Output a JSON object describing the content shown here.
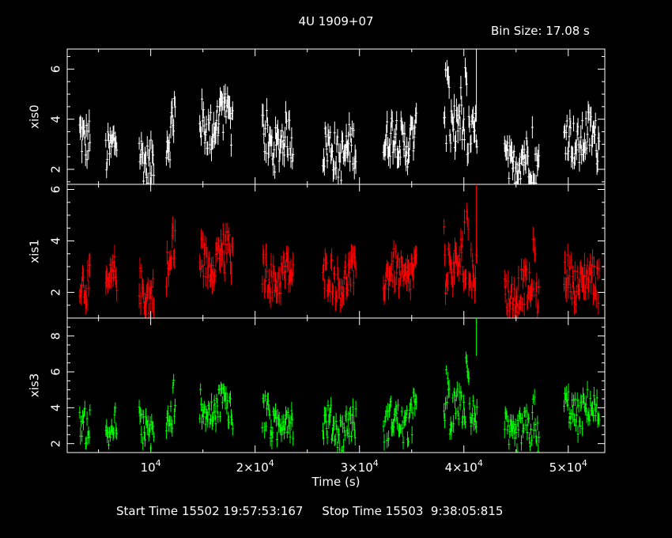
{
  "title": "4U 1909+07",
  "bin_size_label": "Bin Size: 17.08 s",
  "footer": {
    "start_label": "Start Time",
    "start_value": "15502 19:57:53:167",
    "stop_label": "Stop Time",
    "stop_value": "15503  9:38:05:815"
  },
  "colors": {
    "background": "#000000",
    "axes": "#ffffff",
    "xis0": "#ffffff",
    "xis1": "#ff0000",
    "xis3": "#00ff00"
  },
  "chart_data": {
    "type": "scatter",
    "xlabel": "Time (s)",
    "xlim": [
      2000,
      53500
    ],
    "x_ticks": [
      {
        "value": 10000,
        "mantissa": "",
        "exp": "4"
      },
      {
        "value": 20000,
        "mantissa": "2×",
        "exp": "4"
      },
      {
        "value": 30000,
        "mantissa": "3×",
        "exp": "4"
      },
      {
        "value": 40000,
        "mantissa": "4×",
        "exp": "4"
      },
      {
        "value": 50000,
        "mantissa": "5×",
        "exp": "4"
      }
    ],
    "segments": [
      [
        3200,
        4200
      ],
      [
        5700,
        6800
      ],
      [
        8900,
        10300
      ],
      [
        11500,
        12400
      ],
      [
        14700,
        17900
      ],
      [
        20700,
        23700
      ],
      [
        26500,
        29700
      ],
      [
        32300,
        35500
      ],
      [
        38100,
        41300
      ],
      [
        43900,
        47200
      ],
      [
        49600,
        53000
      ]
    ],
    "panels": [
      {
        "name": "xis0",
        "ylabel": "xis0",
        "ylim": [
          1.4,
          6.8
        ],
        "yticks": [
          2,
          4,
          6
        ],
        "color": "#ffffff",
        "levels": [
          3.4,
          2.9,
          2.5,
          3.5,
          3.8,
          3.1,
          2.7,
          3.2,
          3.6,
          2.3,
          3.2
        ],
        "amp": 0.9,
        "bumps": [
          {
            "x": 12200,
            "y": 5.0,
            "w": 300
          },
          {
            "x": 17100,
            "y": 4.9,
            "w": 900
          },
          {
            "x": 21000,
            "y": 4.9,
            "w": 400
          },
          {
            "x": 38300,
            "y": 6.4,
            "w": 400
          },
          {
            "x": 40000,
            "y": 6.6,
            "w": 400
          },
          {
            "x": 46700,
            "y": 4.6,
            "w": 200
          }
        ],
        "flare": {
          "x": 41200,
          "y_top": 6.8,
          "y_bottom": 3.9
        }
      },
      {
        "name": "xis1",
        "ylabel": "xis1",
        "ylim": [
          1.0,
          6.2
        ],
        "yticks": [
          2,
          4,
          6
        ],
        "color": "#ff0000",
        "levels": [
          2.5,
          2.5,
          2.1,
          3.2,
          3.3,
          2.6,
          2.5,
          2.7,
          2.9,
          2.0,
          2.5
        ],
        "amp": 0.75,
        "bumps": [
          {
            "x": 12200,
            "y": 4.8,
            "w": 300
          },
          {
            "x": 17200,
            "y": 4.5,
            "w": 900
          },
          {
            "x": 38200,
            "y": 4.6,
            "w": 400
          },
          {
            "x": 40200,
            "y": 5.2,
            "w": 500
          },
          {
            "x": 46700,
            "y": 4.4,
            "w": 200
          }
        ],
        "flare": {
          "x": 41200,
          "y_top": 6.2,
          "y_bottom": 3.6
        }
      },
      {
        "name": "xis3",
        "ylabel": "xis3",
        "ylim": [
          1.5,
          9.0
        ],
        "yticks": [
          2,
          4,
          6,
          8
        ],
        "color": "#00ff00",
        "levels": [
          3.3,
          2.8,
          2.9,
          3.4,
          4.0,
          3.2,
          2.9,
          3.2,
          3.8,
          2.6,
          3.8
        ],
        "amp": 1.0,
        "bumps": [
          {
            "x": 12200,
            "y": 5.4,
            "w": 300
          },
          {
            "x": 16800,
            "y": 5.0,
            "w": 900
          },
          {
            "x": 21000,
            "y": 4.9,
            "w": 400
          },
          {
            "x": 35200,
            "y": 5.0,
            "w": 400
          },
          {
            "x": 38200,
            "y": 6.5,
            "w": 400
          },
          {
            "x": 40100,
            "y": 7.0,
            "w": 500
          },
          {
            "x": 46700,
            "y": 4.9,
            "w": 200
          }
        ],
        "flare": {
          "x": 41200,
          "y_top": 9.0,
          "y_bottom": 6.9
        }
      }
    ]
  }
}
